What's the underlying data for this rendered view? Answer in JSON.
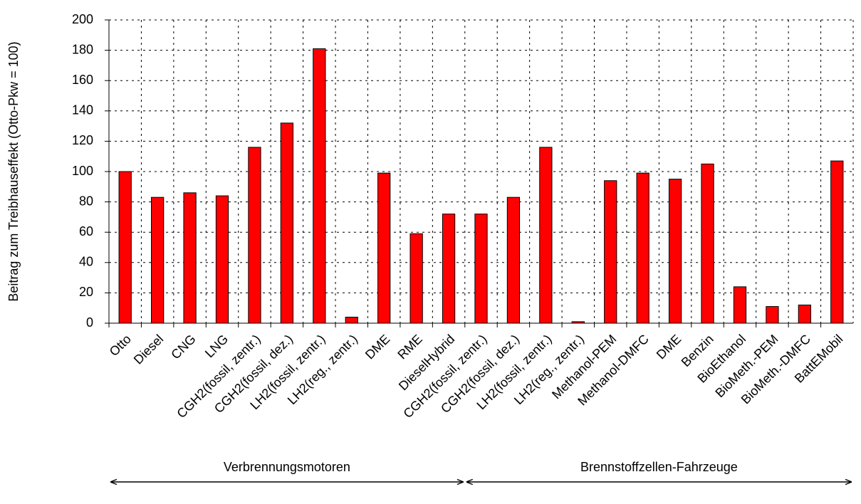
{
  "chart_data": {
    "type": "bar",
    "y_label": "Beitrag zum Treibhauseffekt (Otto-Pkw = 100)",
    "categories": [
      "Otto",
      "Diesel",
      "CNG",
      "LNG",
      "CGH2(fossil, zentr.)",
      "CGH2(fossil, dez.)",
      "LH2(fossil, zentr.)",
      "LH2(reg., zentr.)",
      "DME",
      "RME",
      "DieselHybrid",
      "CGH2(fossil, zentr.)",
      "CGH2(fossil, dez.)",
      "LH2(fossil, zentr.)",
      "LH2(reg., zentr.)",
      "Methanol-PEM",
      "Methanol-DMFC",
      "DME",
      "Benzin",
      "BioEthanol",
      "BioMeth.-PEM",
      "BioMeth.-DMFC",
      "BattEMobil"
    ],
    "values": [
      100,
      83,
      86,
      84,
      116,
      132,
      181,
      4,
      99,
      59,
      72,
      72,
      83,
      116,
      1,
      94,
      99,
      95,
      105,
      24,
      11,
      12,
      107
    ],
    "color": "#ff0000",
    "ylim": [
      0,
      200
    ],
    "yticks": [
      0,
      20,
      40,
      60,
      80,
      100,
      120,
      140,
      160,
      180,
      200
    ],
    "grid": true,
    "groups": [
      {
        "label": "Verbrennungsmotoren",
        "count": 11
      },
      {
        "label": "Brennstoffzellen-Fahrzeuge",
        "count": 12
      }
    ]
  }
}
